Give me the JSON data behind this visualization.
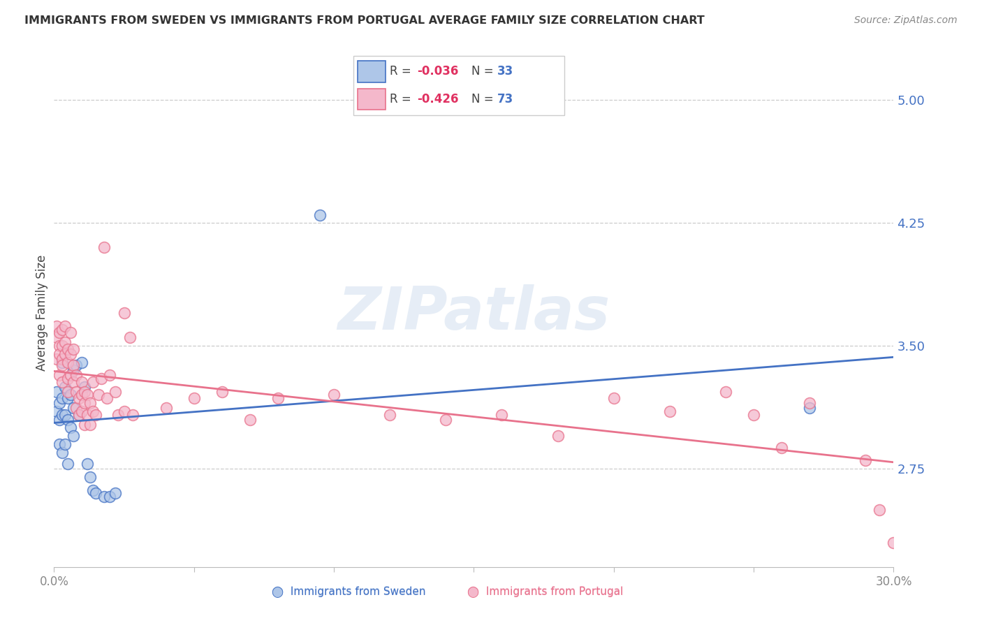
{
  "title": "IMMIGRANTS FROM SWEDEN VS IMMIGRANTS FROM PORTUGAL AVERAGE FAMILY SIZE CORRELATION CHART",
  "source": "Source: ZipAtlas.com",
  "ylabel": "Average Family Size",
  "right_yticks": [
    5.0,
    4.25,
    3.5,
    2.75
  ],
  "ylim": [
    2.15,
    5.25
  ],
  "xlim": [
    0.0,
    0.3
  ],
  "sweden_R": "-0.036",
  "sweden_N": "33",
  "portugal_R": "-0.426",
  "portugal_N": "73",
  "sweden_fill_color": "#aec6e8",
  "portugal_fill_color": "#f4b8cb",
  "sweden_edge_color": "#4472c4",
  "portugal_edge_color": "#e8728c",
  "sweden_line_color": "#4472c4",
  "portugal_line_color": "#e8728c",
  "sweden_x": [
    0.001,
    0.001,
    0.002,
    0.002,
    0.002,
    0.003,
    0.003,
    0.003,
    0.003,
    0.004,
    0.004,
    0.004,
    0.005,
    0.005,
    0.005,
    0.006,
    0.006,
    0.007,
    0.007,
    0.007,
    0.008,
    0.009,
    0.01,
    0.011,
    0.012,
    0.013,
    0.014,
    0.015,
    0.018,
    0.02,
    0.022,
    0.095,
    0.27
  ],
  "sweden_y": [
    3.1,
    3.22,
    3.05,
    3.15,
    2.9,
    3.4,
    3.18,
    3.08,
    2.85,
    3.25,
    3.08,
    2.9,
    3.18,
    3.05,
    2.78,
    3.2,
    3.0,
    3.35,
    3.12,
    2.95,
    3.38,
    3.08,
    3.4,
    3.25,
    2.78,
    2.7,
    2.62,
    2.6,
    2.58,
    2.58,
    2.6,
    4.3,
    3.12
  ],
  "portugal_x": [
    0.001,
    0.001,
    0.001,
    0.002,
    0.002,
    0.002,
    0.002,
    0.003,
    0.003,
    0.003,
    0.003,
    0.003,
    0.004,
    0.004,
    0.004,
    0.005,
    0.005,
    0.005,
    0.005,
    0.006,
    0.006,
    0.006,
    0.007,
    0.007,
    0.007,
    0.008,
    0.008,
    0.008,
    0.009,
    0.009,
    0.01,
    0.01,
    0.01,
    0.011,
    0.011,
    0.011,
    0.012,
    0.012,
    0.013,
    0.013,
    0.014,
    0.014,
    0.015,
    0.016,
    0.017,
    0.018,
    0.019,
    0.02,
    0.022,
    0.023,
    0.025,
    0.025,
    0.027,
    0.028,
    0.04,
    0.05,
    0.06,
    0.07,
    0.08,
    0.1,
    0.12,
    0.14,
    0.16,
    0.18,
    0.2,
    0.22,
    0.24,
    0.25,
    0.26,
    0.27,
    0.29,
    0.295,
    0.3
  ],
  "portugal_y": [
    3.55,
    3.42,
    3.62,
    3.5,
    3.45,
    3.32,
    3.58,
    3.5,
    3.42,
    3.6,
    3.28,
    3.38,
    3.52,
    3.45,
    3.62,
    3.4,
    3.3,
    3.48,
    3.22,
    3.45,
    3.32,
    3.58,
    3.38,
    3.28,
    3.48,
    3.22,
    3.12,
    3.32,
    3.18,
    3.08,
    3.28,
    3.1,
    3.2,
    3.15,
    3.02,
    3.22,
    3.08,
    3.2,
    3.02,
    3.15,
    3.1,
    3.28,
    3.08,
    3.2,
    3.3,
    4.1,
    3.18,
    3.32,
    3.22,
    3.08,
    3.7,
    3.1,
    3.55,
    3.08,
    3.12,
    3.18,
    3.22,
    3.05,
    3.18,
    3.2,
    3.08,
    3.05,
    3.08,
    2.95,
    3.18,
    3.1,
    3.22,
    3.08,
    2.88,
    3.15,
    2.8,
    2.5,
    2.3
  ]
}
